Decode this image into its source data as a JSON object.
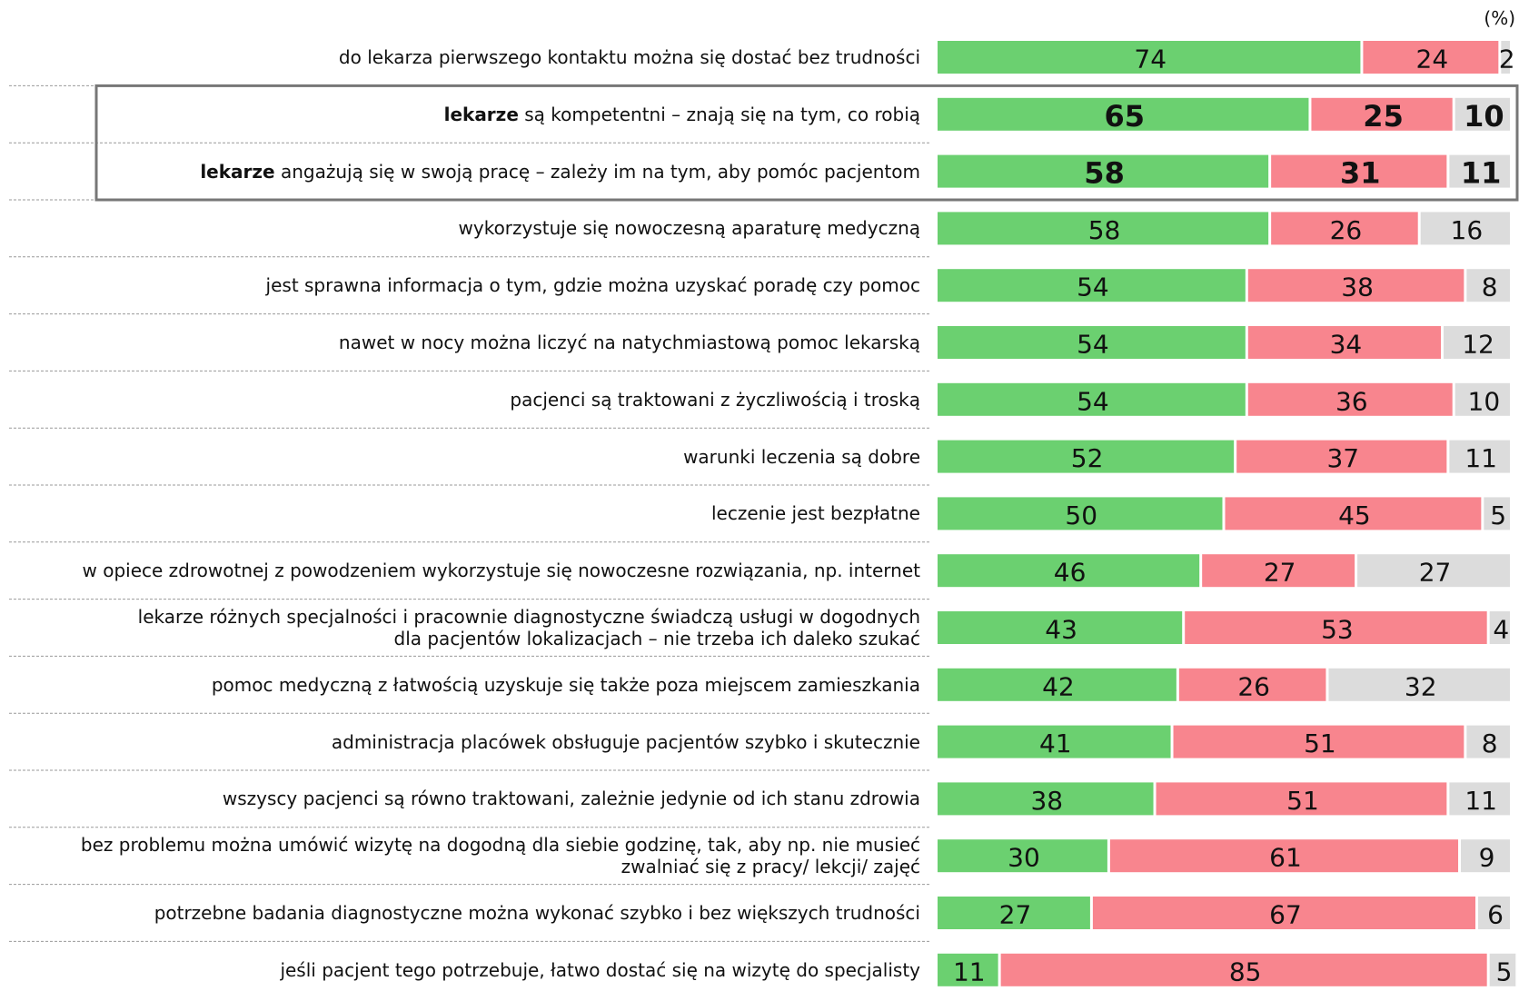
{
  "chart_data": {
    "type": "stacked_bar_horizontal",
    "unit_label": "(%)",
    "xlim": [
      0,
      100
    ],
    "highlight": [
      1,
      2
    ],
    "categories": [
      "do lekarza pierwszego kontaktu można się dostać bez trudności",
      "lekarze są kompetentni – znają się na tym, co robią",
      "lekarze angażują się w swoją pracę – zależy im na tym, aby pomóc pacjentom",
      "wykorzystuje się nowoczesną aparaturę medyczną",
      "jest sprawna informacja o tym, gdzie można uzyskać poradę czy pomoc",
      "nawet w nocy można liczyć na natychmiastową pomoc lekarską",
      "pacjenci są traktowani z życzliwością i troską",
      "warunki leczenia są dobre",
      "leczenie jest bezpłatne",
      "w opiece zdrowotnej z powodzeniem wykorzystuje się nowoczesne rozwiązania, np. internet",
      "lekarze różnych specjalności i pracownie diagnostyczne świadczą usługi w dogodnych\ndla pacjentów lokalizacjach – nie trzeba ich daleko szukać",
      "pomoc medyczną z łatwością uzyskuje się także poza miejscem zamieszkania",
      "administracja placówek obsługuje pacjentów szybko i skutecznie",
      "wszyscy pacjenci są równo traktowani, zależnie jedynie od ich stanu zdrowia",
      "bez problemu można umówić wizytę na dogodną dla siebie godzinę, tak, aby np. nie musieć\nzwalniać się z pracy/ lekcji/ zajęć",
      "potrzebne badania diagnostyczne można wykonać szybko i bez większych trudności",
      "jeśli pacjent tego potrzebuje, łatwo dostać się na wizytę do specjalisty"
    ],
    "series": [
      {
        "color": "#6bd070",
        "values": [
          74,
          65,
          58,
          58,
          54,
          54,
          54,
          52,
          50,
          46,
          43,
          42,
          41,
          38,
          30,
          27,
          11
        ]
      },
      {
        "color": "#f8858e",
        "values": [
          24,
          25,
          31,
          26,
          38,
          34,
          36,
          37,
          45,
          27,
          53,
          26,
          51,
          51,
          61,
          67,
          85
        ]
      },
      {
        "color": "#dcdcdc",
        "values": [
          2,
          10,
          11,
          16,
          8,
          12,
          10,
          11,
          5,
          27,
          4,
          32,
          8,
          11,
          9,
          6,
          5
        ]
      }
    ]
  }
}
